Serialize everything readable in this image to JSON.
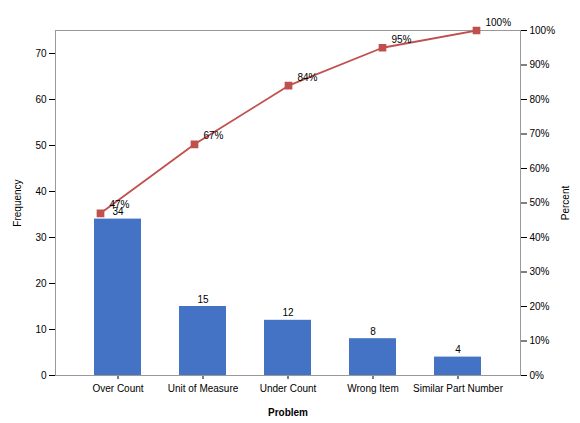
{
  "chart_data": {
    "type": "bar",
    "categories": [
      "Over Count",
      "Unit of Measure",
      "Under Count",
      "Wrong Item",
      "Similar Part Number"
    ],
    "xlabel": "Problem",
    "ylabel": "Frequency",
    "y2label": "Percent",
    "ylim": [
      0,
      75
    ],
    "yticks": [
      0,
      10,
      20,
      30,
      40,
      50,
      60,
      70
    ],
    "y2lim": [
      0,
      100
    ],
    "y2ticks": [
      {
        "value": 0,
        "label": "0%"
      },
      {
        "value": 10,
        "label": "10%"
      },
      {
        "value": 20,
        "label": "20%"
      },
      {
        "value": 30,
        "label": "30%"
      },
      {
        "value": 40,
        "label": "40%"
      },
      {
        "value": 50,
        "label": "50%"
      },
      {
        "value": 60,
        "label": "60%"
      },
      {
        "value": 70,
        "label": "70%"
      },
      {
        "value": 80,
        "label": "80%"
      },
      {
        "value": 90,
        "label": "90%"
      },
      {
        "value": 100,
        "label": "100%"
      }
    ],
    "grid": false,
    "series": [
      {
        "type": "bar",
        "color": "#4472C4",
        "values": [
          34,
          15,
          12,
          8,
          4
        ],
        "data_labels": true
      },
      {
        "type": "line",
        "axis": "y2",
        "color": "#C0504D",
        "marker": "square",
        "values": [
          47,
          67,
          84,
          95,
          100
        ],
        "value_labels": [
          "47%",
          "67%",
          "84%",
          "95%",
          "100%"
        ],
        "data_labels": true
      }
    ]
  }
}
